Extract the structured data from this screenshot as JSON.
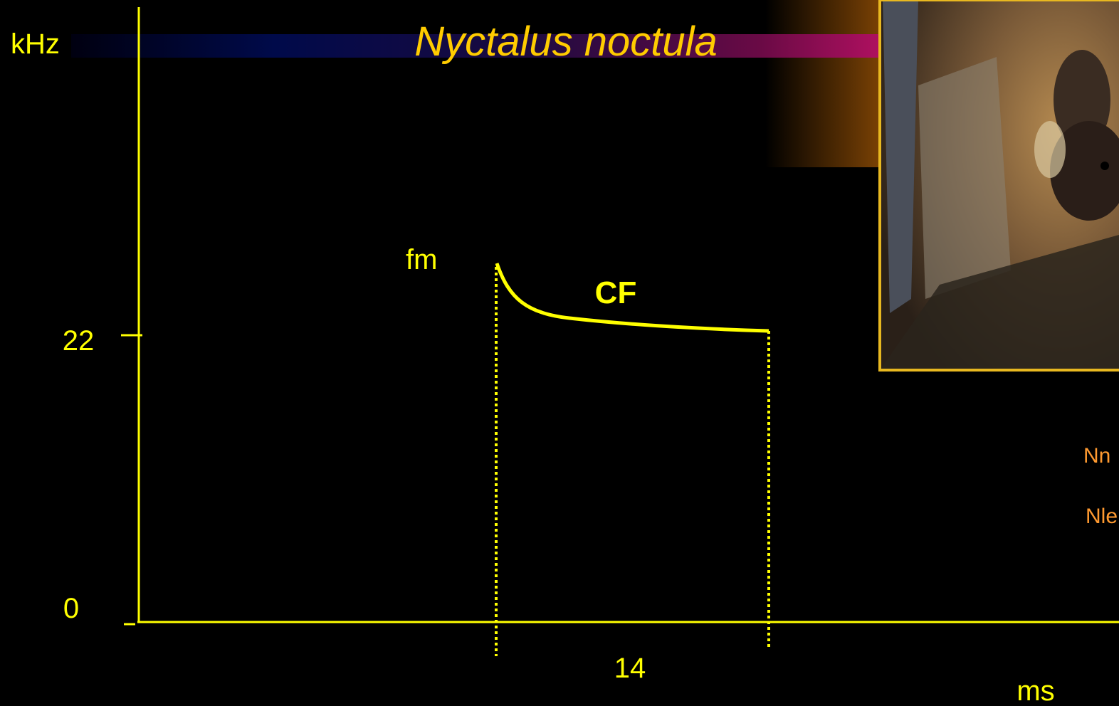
{
  "slide": {
    "title": "Nyctalus noctula",
    "y_axis_unit": "kHz",
    "x_axis_unit": "ms",
    "y_tick_top": "22",
    "y_tick_bottom": "0",
    "duration_label": "14",
    "segment_labels": {
      "fm": "fm",
      "cf": "CF"
    },
    "side_notes": [
      "Nn",
      "Nle"
    ]
  }
}
